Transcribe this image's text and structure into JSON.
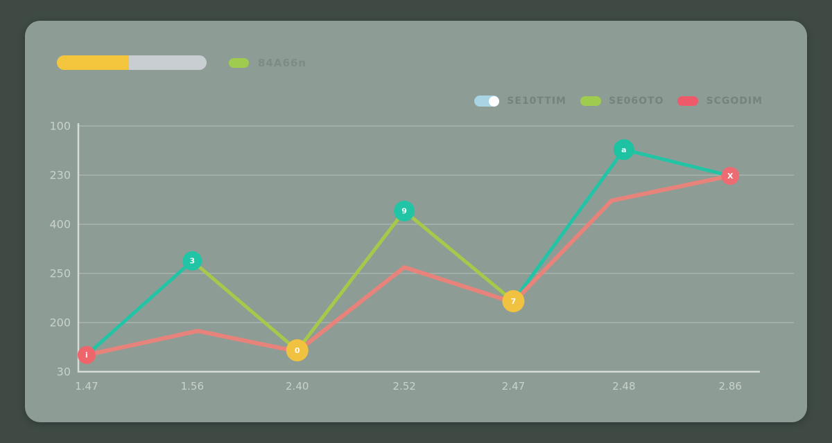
{
  "page": {
    "background_color": "#3f4a45",
    "card_color": "#8d9d95"
  },
  "topbar": {
    "progress": {
      "percent": 48,
      "fill_color": "#f2c53d",
      "track_color": "#c9ced3"
    },
    "series_tag": {
      "swatch_color": "#9fcb4e",
      "label": "84A66n",
      "label_color": "#7d8b85"
    }
  },
  "legend": {
    "text_color": "#75837d",
    "items": [
      {
        "label": "SE10TTIM",
        "swatch_color": "#a9d4e4",
        "swatch_type": "toggle"
      },
      {
        "label": "SE06OTO",
        "swatch_color": "#9fcb4e",
        "swatch_type": "pill"
      },
      {
        "label": "SCGODIM",
        "swatch_color": "#ee5a6a",
        "swatch_type": "pill"
      }
    ]
  },
  "chart_data": {
    "type": "line",
    "title": "",
    "xlabel": "",
    "ylabel": "",
    "grid": true,
    "axis_color": "#d6dcd6",
    "grid_color": "rgba(255,255,255,0.25)",
    "tick_label_color": "#c9d1cb",
    "y_tick_labels": [
      "100",
      "230",
      "400",
      "250",
      "200",
      "30"
    ],
    "x_tick_labels": [
      "1.47",
      "1.56",
      "2.40",
      "2.52",
      "2.47",
      "2.48",
      "2.86"
    ],
    "x_tick_pos": [
      1.2,
      16.5,
      31.7,
      47.2,
      63.0,
      79.0,
      94.4
    ],
    "ylim": [
      0,
      100
    ],
    "series": [
      {
        "name": "zigzag",
        "points": [
          {
            "x": 1.2,
            "y": 6.8
          },
          {
            "x": 16.5,
            "y": 45.1
          },
          {
            "x": 31.7,
            "y": 8.7
          },
          {
            "x": 47.2,
            "y": 65.4
          },
          {
            "x": 63.0,
            "y": 28.7
          },
          {
            "x": 79.0,
            "y": 90.4
          },
          {
            "x": 94.4,
            "y": 79.7
          }
        ],
        "segment_colors": [
          "#23c4a6",
          "#a6c94b",
          "#a6c94b",
          "#a6c94b",
          "#23c4a6",
          "#23c4a6"
        ],
        "width": 5
      },
      {
        "name": "smooth",
        "color": "#e8837b",
        "points": [
          {
            "x": 1.2,
            "y": 6.8
          },
          {
            "x": 17.3,
            "y": 16.6
          },
          {
            "x": 31.7,
            "y": 8.2
          },
          {
            "x": 47.2,
            "y": 42.5
          },
          {
            "x": 63.0,
            "y": 28.2
          },
          {
            "x": 77.2,
            "y": 69.6
          },
          {
            "x": 94.4,
            "y": 79.7
          }
        ],
        "width": 6
      }
    ],
    "markers": [
      {
        "x": 1.2,
        "y": 6.8,
        "r": 13,
        "color": "#ee666c",
        "label": "i"
      },
      {
        "x": 16.5,
        "y": 45.1,
        "r": 14,
        "color": "#22c4a6",
        "label": "3"
      },
      {
        "x": 31.7,
        "y": 8.7,
        "r": 16,
        "color": "#f0c23f",
        "label": "0"
      },
      {
        "x": 47.2,
        "y": 65.4,
        "r": 15,
        "color": "#22c4a6",
        "label": "9"
      },
      {
        "x": 63.0,
        "y": 28.7,
        "r": 16,
        "color": "#f0c23f",
        "label": "7"
      },
      {
        "x": 79.0,
        "y": 90.4,
        "r": 15,
        "color": "#1cc2a2",
        "label": "a"
      },
      {
        "x": 94.4,
        "y": 79.7,
        "r": 13,
        "color": "#ed6b72",
        "label": "X"
      }
    ],
    "marker_label_color": "#ffffff"
  }
}
